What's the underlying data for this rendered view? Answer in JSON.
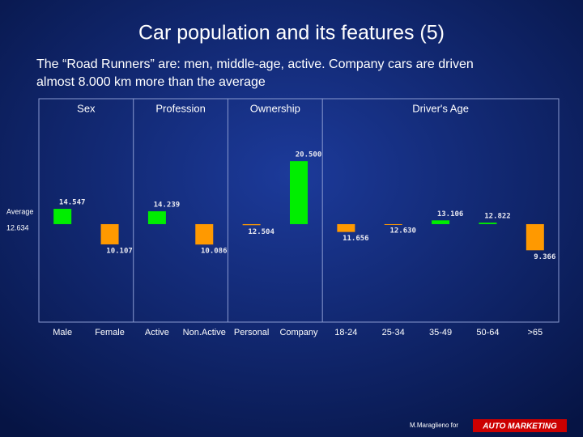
{
  "title": "Car population and its features (5)",
  "subtitle": [
    "The “Road Runners” are: men, middle-age, active. Company cars are driven",
    "almost 8.000 km more than the average"
  ],
  "chart_data": {
    "type": "bar",
    "average_label": "Average",
    "average": 12634,
    "average_value_label": "12.634",
    "ylim": [
      400,
      28300
    ],
    "colors": {
      "above": "#00ee00",
      "below": "#ff9900"
    },
    "groups": [
      {
        "name": "Sex",
        "categories": [
          "Male",
          "Female"
        ],
        "values": [
          14547,
          10107
        ],
        "value_labels": [
          "14.547",
          "10.107"
        ]
      },
      {
        "name": "Profession",
        "categories": [
          "Active",
          "Non.Active"
        ],
        "values": [
          14239,
          10086
        ],
        "value_labels": [
          "14.239",
          "10.086"
        ]
      },
      {
        "name": "Ownership",
        "categories": [
          "Personal",
          "Company"
        ],
        "values": [
          12504,
          20500
        ],
        "value_labels": [
          "12.504",
          "20.500"
        ]
      },
      {
        "name": "Driver's Age",
        "categories": [
          "18-24",
          "25-34",
          "35-49",
          "50-64",
          ">65"
        ],
        "values": [
          11656,
          12630,
          13106,
          12822,
          9366
        ],
        "value_labels": [
          "11.656",
          "12.630",
          "13.106",
          "12.822",
          "9.366"
        ]
      }
    ]
  },
  "footer": {
    "credit": "M.Maraglieno for",
    "logo": "AUTO MARKETING"
  }
}
